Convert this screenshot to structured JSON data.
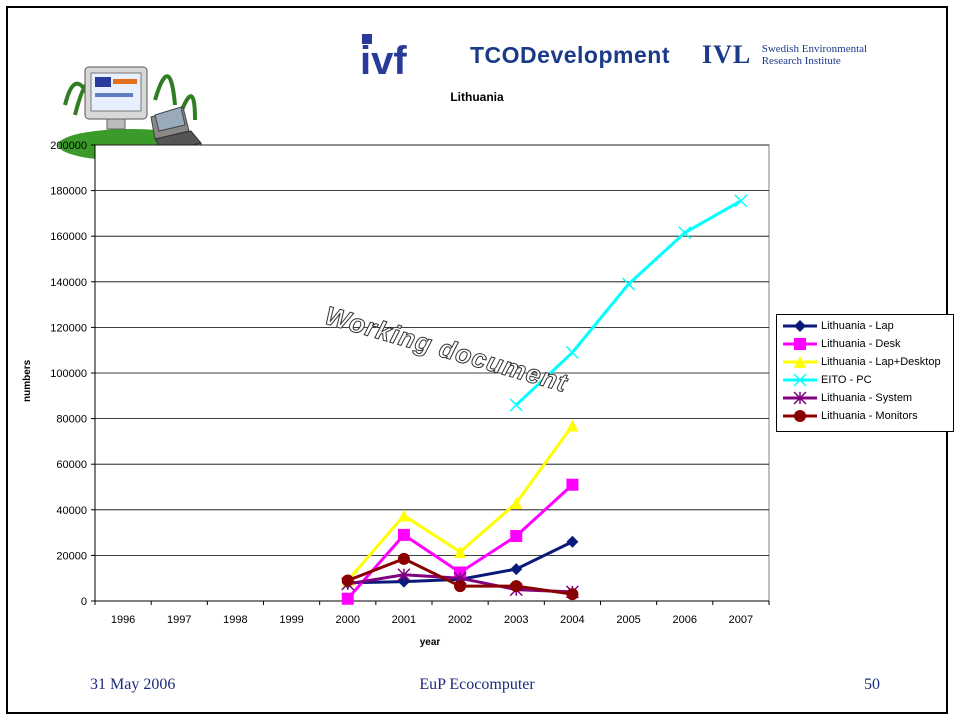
{
  "slide": {
    "footer_date": "31 May 2006",
    "footer_title": "EuP Ecocomputer",
    "page_number": "50",
    "watermark": "Working document"
  },
  "logos": {
    "ivf": "ivf",
    "tco": "TCODevelopment",
    "ivl_mark": "IVL",
    "ivl_line1": "Swedish Environmental",
    "ivl_line2": "Research Institute"
  },
  "chart_data": {
    "type": "line",
    "title": "Lithuania",
    "xlabel": "year",
    "ylabel": "numbers",
    "categories": [
      "1996",
      "1997",
      "1998",
      "1999",
      "2000",
      "2001",
      "2002",
      "2003",
      "2004",
      "2005",
      "2006",
      "2007"
    ],
    "ylim": [
      0,
      200000
    ],
    "yticks": [
      "0",
      "20000",
      "40000",
      "60000",
      "80000",
      "100000",
      "120000",
      "140000",
      "160000",
      "180000",
      "200000"
    ],
    "grid": "horizontal",
    "legend_position": "right",
    "series": [
      {
        "name": "Lithuania - Lap",
        "color": "#0a1a7a",
        "marker": "diamond",
        "values": [
          null,
          null,
          null,
          null,
          8000,
          8500,
          9500,
          14000,
          26000,
          null,
          null,
          null
        ]
      },
      {
        "name": "Lithuania - Desk",
        "color": "#ff00ff",
        "marker": "square",
        "values": [
          null,
          null,
          null,
          null,
          1000,
          29000,
          12500,
          28500,
          51000,
          null,
          null,
          null
        ]
      },
      {
        "name": "Lithuania - Lap+Desktop",
        "color": "#ffff00",
        "marker": "triangle",
        "values": [
          null,
          null,
          null,
          null,
          9000,
          37500,
          21500,
          43000,
          77000,
          null,
          null,
          null
        ]
      },
      {
        "name": "EITO - PC",
        "color": "#00ffff",
        "marker": "x",
        "values": [
          null,
          null,
          null,
          null,
          null,
          null,
          null,
          86000,
          109000,
          139000,
          161500,
          175500
        ]
      },
      {
        "name": "Lithuania - System",
        "color": "#800080",
        "marker": "star",
        "values": [
          null,
          null,
          null,
          null,
          7500,
          11500,
          10000,
          5000,
          4000,
          null,
          null,
          null
        ]
      },
      {
        "name": "Lithuania - Monitors",
        "color": "#8b0000",
        "marker": "circle",
        "values": [
          null,
          null,
          null,
          null,
          9000,
          18500,
          6500,
          6500,
          3000,
          null,
          null,
          null
        ]
      }
    ]
  }
}
